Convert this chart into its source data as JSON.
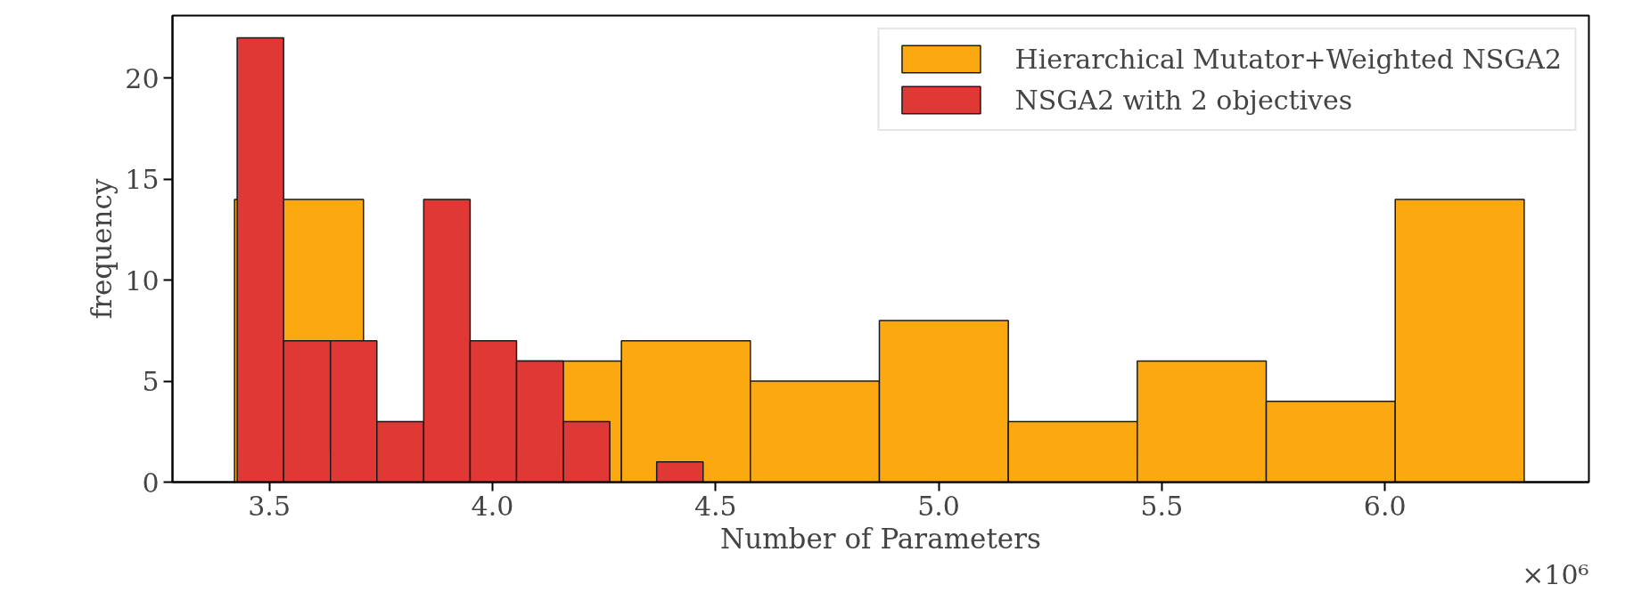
{
  "chart_data": {
    "type": "histogram",
    "xlabel": "Number of Parameters",
    "ylabel": "frequency",
    "annotations": [
      "×10⁶"
    ],
    "bins": [
      3.422,
      3.711,
      4.0,
      4.289,
      4.578,
      4.867,
      5.156,
      5.445,
      5.734,
      6.023,
      6.312
    ],
    "series": [
      {
        "name": "Hierarchical Mutator+Weighted NSGA2",
        "color": "#fca811",
        "values": [
          14,
          null,
          6,
          7,
          5,
          8,
          3,
          6,
          4,
          14
        ]
      },
      {
        "name": "NSGA2 with 2 objectives",
        "color": "#e03834",
        "bins": [
          3.428,
          3.532,
          3.637,
          3.741,
          3.846,
          3.95,
          4.054,
          4.159,
          4.263,
          4.368,
          4.472
        ],
        "values": [
          22,
          7,
          7,
          3,
          14,
          7,
          6,
          3,
          0,
          1
        ]
      }
    ],
    "xlim": [
      3.283,
      6.457
    ],
    "ylim": [
      0,
      23.1
    ],
    "xticks": [
      3.5,
      {
        "value": 4,
        "label": "4.0"
      },
      4.5,
      {
        "value": 5,
        "label": "5.0"
      },
      5.5,
      {
        "value": 6,
        "label": "6.0"
      }
    ],
    "yticks": [
      0,
      5,
      10,
      15,
      20
    ],
    "grid": false,
    "legend": "top right"
  }
}
